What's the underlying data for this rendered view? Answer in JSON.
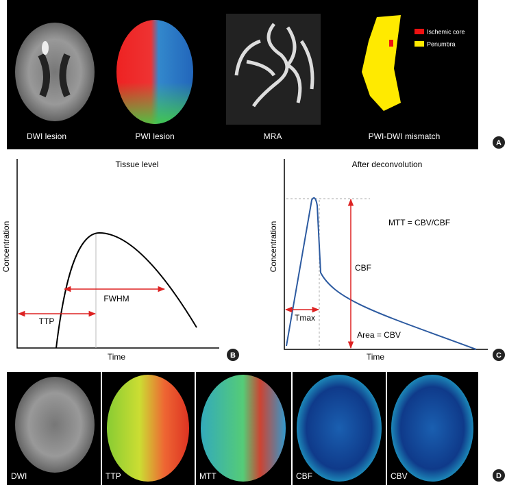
{
  "panel_a": {
    "images": [
      {
        "label": "DWI lesion"
      },
      {
        "label": "PWI lesion"
      },
      {
        "label": "MRA"
      },
      {
        "label": "PWI-DWI mismatch"
      }
    ],
    "legend": [
      {
        "label": "Ischemic core"
      },
      {
        "label": "Penumbra"
      }
    ],
    "tag": "A"
  },
  "panel_b": {
    "title": "Tissue level",
    "y_label": "Concentration",
    "x_label": "Time",
    "annotations": [
      "FWHM",
      "TTP"
    ],
    "tag": "B"
  },
  "panel_c": {
    "title": "After deconvolution",
    "y_label": "Concentration",
    "x_label": "Time",
    "annotations": [
      "MTT = CBV/CBF",
      "CBF",
      "Tmax",
      "Area = CBV"
    ],
    "tag": "C"
  },
  "panel_d": {
    "labels": [
      "DWI",
      "TTP",
      "MTT",
      "CBF",
      "CBV"
    ],
    "tag": "D"
  }
}
